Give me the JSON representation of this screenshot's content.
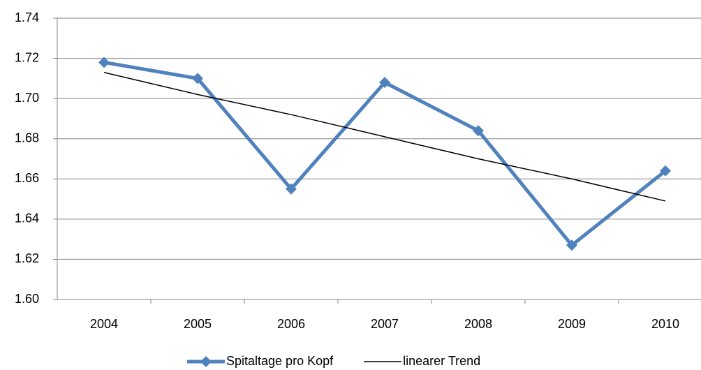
{
  "chart_data": {
    "type": "line",
    "categories": [
      "2004",
      "2005",
      "2006",
      "2007",
      "2008",
      "2009",
      "2010"
    ],
    "series": [
      {
        "name": "Spitaltage pro Kopf",
        "color": "#4f81bd",
        "values": [
          1.718,
          1.71,
          1.655,
          1.708,
          1.684,
          1.627,
          1.664
        ]
      },
      {
        "name": "linearer Trend",
        "color": "#000000",
        "values": [
          1.713,
          1.702,
          1.692,
          1.681,
          1.67,
          1.66,
          1.649
        ]
      }
    ],
    "ylim": [
      1.6,
      1.74
    ],
    "yticks": [
      {
        "value": 1.6,
        "label": "1.60"
      },
      {
        "value": 1.62,
        "label": "1.62"
      },
      {
        "value": 1.64,
        "label": "1.64"
      },
      {
        "value": 1.66,
        "label": "1.66"
      },
      {
        "value": 1.68,
        "label": "1.68"
      },
      {
        "value": 1.7,
        "label": "1.70"
      },
      {
        "value": 1.72,
        "label": "1.72"
      },
      {
        "value": 1.74,
        "label": "1.74"
      }
    ],
    "grid": true,
    "legend": "bottom"
  }
}
